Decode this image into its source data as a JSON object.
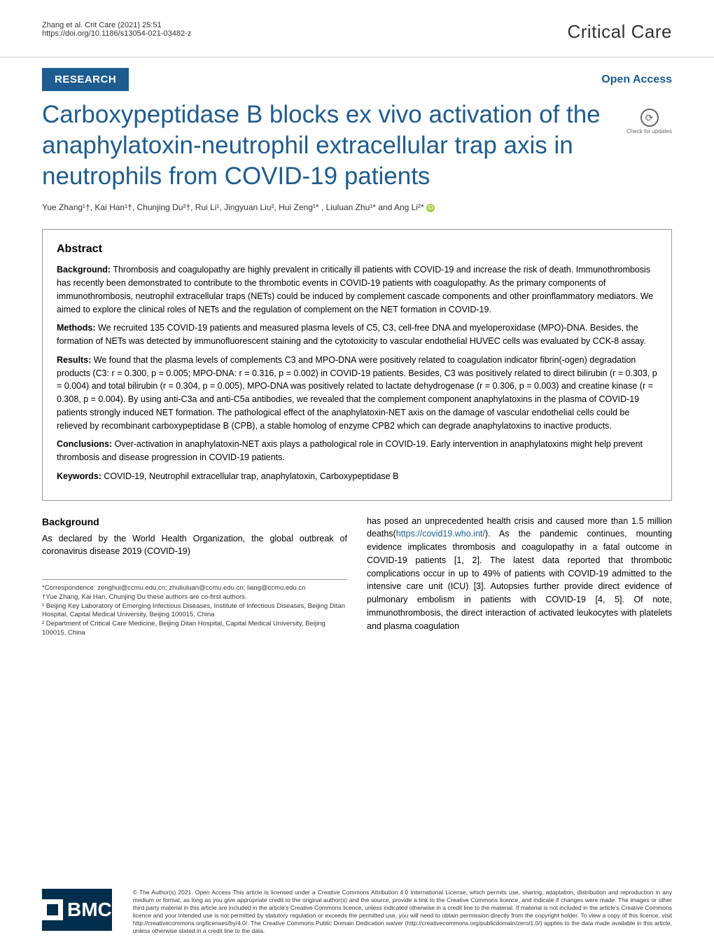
{
  "header": {
    "citation": "Zhang et al. Crit Care          (2021) 25:51",
    "doi": "https://doi.org/10.1186/s13054-021-03482-z",
    "journal": "Critical Care"
  },
  "meta": {
    "article_type": "RESEARCH",
    "open_access": "Open Access",
    "check_updates": "Check for updates"
  },
  "title": "Carboxypeptidase B blocks ex vivo activation of the anaphylatoxin-neutrophil extracellular trap axis in neutrophils from COVID-19 patients",
  "authors": "Yue Zhang¹†, Kai Han¹†, Chunjing Du²†, Rui Li¹, Jingyuan Liu², Hui Zeng¹* , Liuluan Zhu¹* and Ang Li²*",
  "abstract": {
    "heading": "Abstract",
    "background_label": "Background:",
    "background": " Thrombosis and coagulopathy are highly prevalent in critically ill patients with COVID-19 and increase the risk of death. Immunothrombosis has recently been demonstrated to contribute to the thrombotic events in COVID-19 patients with coagulopathy. As the primary components of immunothrombosis, neutrophil extracellular traps (NETs) could be induced by complement cascade components and other proinflammatory mediators. We aimed to explore the clinical roles of NETs and the regulation of complement on the NET formation in COVID-19.",
    "methods_label": "Methods:",
    "methods": " We recruited 135 COVID-19 patients and measured plasma levels of C5, C3, cell-free DNA and myeloperoxidase (MPO)-DNA. Besides, the formation of NETs was detected by immunofluorescent staining and the cytotoxicity to vascular endothelial HUVEC cells was evaluated by CCK-8 assay.",
    "results_label": "Results:",
    "results": " We found that the plasma levels of complements C3 and MPO-DNA were positively related to coagulation indicator fibrin(-ogen) degradation products (C3: r = 0.300, p = 0.005; MPO-DNA: r = 0.316, p = 0.002) in COVID-19 patients. Besides, C3 was positively related to direct bilirubin (r = 0.303, p = 0.004) and total bilirubin (r = 0.304, p = 0.005), MPO-DNA was positively related to lactate dehydrogenase (r = 0.306, p = 0.003) and creatine kinase (r = 0.308, p = 0.004). By using anti-C3a and anti-C5a antibodies, we revealed that the complement component anaphylatoxins in the plasma of COVID-19 patients strongly induced NET formation. The pathological effect of the anaphylatoxin-NET axis on the damage of vascular endothelial cells could be relieved by recombinant carboxypeptidase B (CPB), a stable homolog of enzyme CPB2 which can degrade anaphylatoxins to inactive products.",
    "conclusions_label": "Conclusions:",
    "conclusions": " Over-activation in anaphylatoxin-NET axis plays a pathological role in COVID-19. Early intervention in anaphylatoxins might help prevent thrombosis and disease progression in COVID-19 patients.",
    "keywords_label": "Keywords:",
    "keywords": " COVID-19, Neutrophil extracellular trap, anaphylatoxin, Carboxypeptidase B"
  },
  "body": {
    "background_heading": "Background",
    "left_p1": "As declared by the World Health Organization, the global outbreak of coronavirus disease 2019 (COVID-19)",
    "right_p1_a": "has posed an unprecedented health crisis and caused more than 1.5 million deaths(",
    "right_link": "https://covid19.who.int/",
    "right_p1_b": "). As the pandemic continues, mounting evidence implicates thrombosis and coagulopathy in a fatal outcome in COVID-19 patients [1, 2]. The latest data reported that thrombotic complications occur in up to 49% of patients with COVID-19 admitted to the intensive care unit (ICU) [3]. Autopsies further provide direct evidence of pulmonary embolism in patients with COVID-19 [4, 5]. Of note, immunothrombosis, the direct interaction of activated leukocytes with platelets and plasma coagulation"
  },
  "footnotes": {
    "correspondence": "*Correspondence: zenghui@ccmu.edu.cn; zhuliuluan@ccmu.edu.cn; liang@ccmu.edu.cn",
    "cofirst": "†Yue Zhang, Kai Han, Chunjing Du these authors are co-first authors.",
    "aff1": "¹ Beijing Key Laboratory of Emerging Infectious Diseases, Institute of Infectious Diseases, Beijing Ditan Hospital, Capital Medical University, Beijing 100015, China",
    "aff2": "² Department of Critical Care Medicine, Beijing Ditan Hospital, Capital Medical University, Beijing 100015, China"
  },
  "footer": {
    "bmc": "BMC",
    "license": "© The Author(s) 2021. Open Access This article is licensed under a Creative Commons Attribution 4.0 International License, which permits use, sharing, adaptation, distribution and reproduction in any medium or format, as long as you give appropriate credit to the original author(s) and the source, provide a link to the Creative Commons licence, and indicate if changes were made. The images or other third party material in this article are included in the article's Creative Commons licence, unless indicated otherwise in a credit line to the material. If material is not included in the article's Creative Commons licence and your intended use is not permitted by statutory regulation or exceeds the permitted use, you will need to obtain permission directly from the copyright holder. To view a copy of this licence, visit http://creativecommons.org/licenses/by/4.0/. The Creative Commons Public Domain Dedication waiver (http://creativecommons.org/publicdomain/zero/1.0/) applies to the data made available in this article, unless otherwise stated in a credit line to the data."
  },
  "colors": {
    "primary_blue": "#1e5c8f",
    "bmc_navy": "#022e4d",
    "orcid_green": "#a6ce39",
    "border_gray": "#999999",
    "text_gray": "#333333"
  }
}
